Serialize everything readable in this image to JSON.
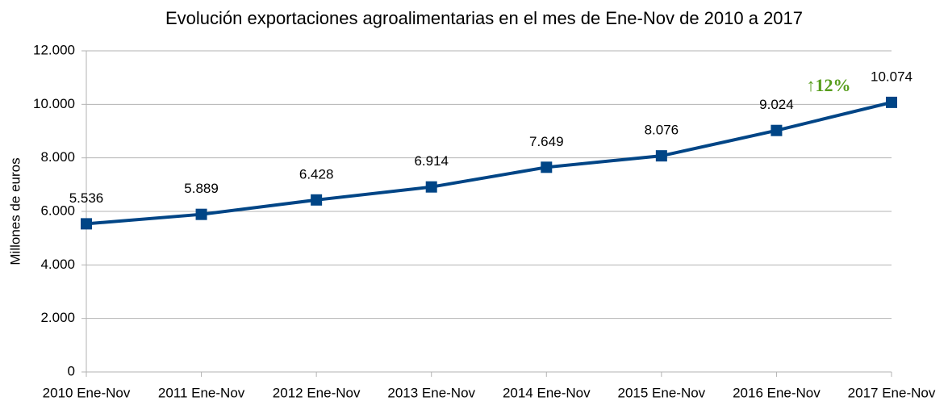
{
  "chart_data": {
    "type": "line",
    "title": "Evolución exportaciones agroalimentarias en el mes de Ene-Nov de 2010 a 2017",
    "y_label": "Millones de euros",
    "categories": [
      "2010 Ene-Nov",
      "2011 Ene-Nov",
      "2012 Ene-Nov",
      "2013 Ene-Nov",
      "2014 Ene-Nov",
      "2015 Ene-Nov",
      "2016 Ene-Nov",
      "2017 Ene-Nov"
    ],
    "values": [
      5536,
      5889,
      6428,
      6914,
      7649,
      8076,
      9024,
      10074
    ],
    "value_labels": [
      "5.536",
      "5.889",
      "6.428",
      "6.914",
      "7.649",
      "8.076",
      "9.024",
      "10.074"
    ],
    "color": "#004586",
    "annotation": "↑12%",
    "annotation_color": "#579d1c",
    "ylim": [
      0,
      12000
    ],
    "yticks": [
      0,
      {
        "value": 2000,
        "label": "2.000"
      },
      {
        "value": 4000,
        "label": "4.000"
      },
      {
        "value": 6000,
        "label": "6.000"
      },
      {
        "value": 8000,
        "label": "8.000"
      },
      {
        "value": 10000,
        "label": "10.000"
      },
      {
        "value": 12000,
        "label": "12.000"
      }
    ],
    "grid": true
  }
}
